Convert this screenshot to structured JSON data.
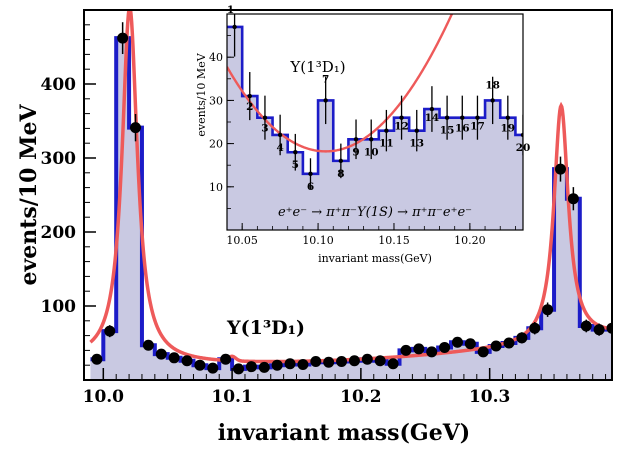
{
  "chart_data": [
    {
      "type": "histogram",
      "xlabel": "invariant mass(GeV)",
      "ylabel": "events/10 MeV",
      "xlim": [
        9.985,
        10.395
      ],
      "ylim": [
        0,
        500
      ],
      "x_ticks": [
        "10.0",
        "10.1",
        "10.2",
        "10.3"
      ],
      "y_ticks": [
        "100",
        "200",
        "300",
        "400"
      ],
      "annotation": "Υ(1³D₁)",
      "colors": {
        "histogram_edge": "#1c1cc8",
        "histogram_fill": "#c9c9e2",
        "fit_curve": "#ee5a5a",
        "points": "#000000"
      },
      "bins": [
        [
          9.995,
          28
        ],
        [
          10.005,
          66
        ],
        [
          10.015,
          462
        ],
        [
          10.025,
          341
        ],
        [
          10.035,
          47
        ],
        [
          10.045,
          35
        ],
        [
          10.055,
          30
        ],
        [
          10.065,
          26
        ],
        [
          10.075,
          20
        ],
        [
          10.085,
          16
        ],
        [
          10.095,
          28
        ],
        [
          10.105,
          15
        ],
        [
          10.115,
          18
        ],
        [
          10.125,
          17
        ],
        [
          10.135,
          20
        ],
        [
          10.145,
          22
        ],
        [
          10.155,
          21
        ],
        [
          10.165,
          25
        ],
        [
          10.175,
          24
        ],
        [
          10.185,
          25
        ],
        [
          10.195,
          26
        ],
        [
          10.205,
          28
        ],
        [
          10.215,
          26
        ],
        [
          10.225,
          22
        ],
        [
          10.235,
          40
        ],
        [
          10.245,
          42
        ],
        [
          10.255,
          38
        ],
        [
          10.265,
          44
        ],
        [
          10.275,
          51
        ],
        [
          10.285,
          49
        ],
        [
          10.295,
          38
        ],
        [
          10.305,
          46
        ],
        [
          10.315,
          50
        ],
        [
          10.325,
          57
        ],
        [
          10.335,
          70
        ],
        [
          10.345,
          95
        ],
        [
          10.355,
          285
        ],
        [
          10.365,
          245
        ],
        [
          10.375,
          73
        ],
        [
          10.385,
          68
        ],
        [
          10.395,
          70
        ]
      ]
    },
    {
      "type": "histogram",
      "xlabel": "invariant mass(GeV)",
      "ylabel": "events/10 MeV",
      "xlim": [
        10.04,
        10.235
      ],
      "ylim": [
        0,
        50
      ],
      "x_ticks": [
        "10.05",
        "10.10",
        "10.15",
        "10.20"
      ],
      "y_ticks": [
        "10",
        "20",
        "30",
        "40"
      ],
      "annotation": "Υ(1³D₁)",
      "reaction": "e⁺e⁻ → π⁺π⁻Υ(1S) → π⁺π⁻e⁺e⁻",
      "bin_labels": [
        "1",
        "2",
        "3",
        "4",
        "5",
        "6",
        "7",
        "8",
        "9",
        "10",
        "11",
        "12",
        "13",
        "14",
        "15",
        "16",
        "17",
        "18",
        "19",
        "20"
      ],
      "bins": [
        [
          10.045,
          47
        ],
        [
          10.055,
          31
        ],
        [
          10.065,
          26
        ],
        [
          10.075,
          22
        ],
        [
          10.085,
          18
        ],
        [
          10.095,
          13
        ],
        [
          10.105,
          30
        ],
        [
          10.115,
          16
        ],
        [
          10.125,
          21
        ],
        [
          10.135,
          21
        ],
        [
          10.145,
          23
        ],
        [
          10.155,
          26
        ],
        [
          10.165,
          23
        ],
        [
          10.175,
          28
        ],
        [
          10.185,
          26
        ],
        [
          10.195,
          26
        ],
        [
          10.205,
          26
        ],
        [
          10.215,
          30
        ],
        [
          10.225,
          26
        ],
        [
          10.235,
          22
        ]
      ]
    }
  ]
}
